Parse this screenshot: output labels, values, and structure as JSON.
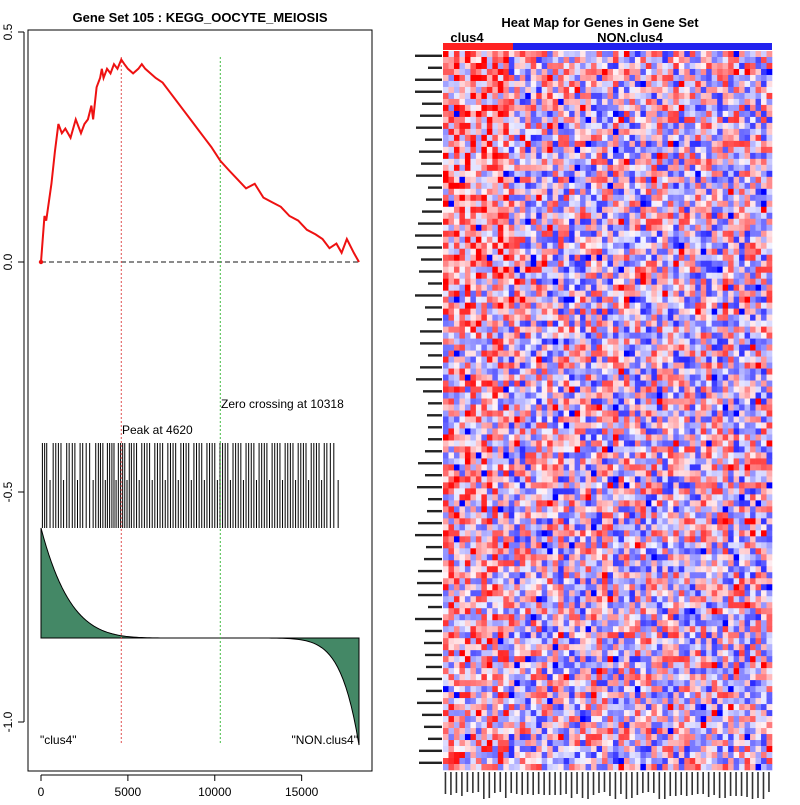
{
  "gsea": {
    "title": "Gene Set  105 : KEGG_OOCYTE_MEIOSIS",
    "peak_label": "Peak at 4620",
    "zero_label": "Zero crossing at 10318",
    "left_group_label": "\"clus4\"",
    "right_group_label": "\"NON.clus4\"",
    "colors": {
      "es_line": "#ee1111",
      "peak_line": "#e05050",
      "zero_line": "#44bb44",
      "ranked_fill": "#448866"
    }
  },
  "heatmap": {
    "title": "Heat Map for Genes in Gene Set",
    "group_left": "clus4",
    "group_right": "NON.clus4",
    "colors": {
      "group_left": "#ff2222",
      "group_right": "#2222ee",
      "high": "#ff0000",
      "low": "#0000ff",
      "mid": "#f4f4f8"
    }
  },
  "chart_data": [
    {
      "type": "line",
      "title": "Gene Set  105 : KEGG_OOCYTE_MEIOSIS",
      "xlim": [
        0,
        18300
      ],
      "ylim": [
        -1.08,
        0.5
      ],
      "x_ticks": [
        0,
        5000,
        10000,
        15000
      ],
      "x_tick_labels": [
        "0",
        "5000",
        "10000",
        "15000"
      ],
      "y_ticks": [
        0.5,
        0.0,
        -0.5,
        -1.0
      ],
      "y_tick_labels": [
        "0.5",
        "0.0",
        "-0.5",
        "-1.0"
      ],
      "series": [
        {
          "x": [
            0,
            200,
            300,
            600,
            800,
            1000,
            1200,
            1400,
            1700,
            2000,
            2300,
            2500,
            2700,
            2900,
            3000,
            3200,
            3400,
            3500,
            3600,
            3800,
            4000,
            4200,
            4400,
            4620,
            4800,
            5000,
            5300,
            5600,
            5800,
            6000,
            6300,
            6600,
            7000,
            7400,
            7800,
            8200,
            8600,
            9000,
            9400,
            9800,
            10318,
            10800,
            11300,
            11800,
            12300,
            12800,
            13300,
            13800,
            14300,
            14800,
            15300,
            15800,
            16200,
            16600,
            17000,
            17300,
            17600,
            18000,
            18300
          ],
          "y": [
            0.0,
            0.1,
            0.09,
            0.17,
            0.24,
            0.3,
            0.28,
            0.29,
            0.27,
            0.31,
            0.28,
            0.3,
            0.31,
            0.34,
            0.31,
            0.38,
            0.4,
            0.42,
            0.4,
            0.42,
            0.41,
            0.43,
            0.42,
            0.44,
            0.43,
            0.42,
            0.41,
            0.42,
            0.43,
            0.42,
            0.41,
            0.4,
            0.39,
            0.37,
            0.35,
            0.33,
            0.31,
            0.29,
            0.27,
            0.25,
            0.22,
            0.2,
            0.18,
            0.16,
            0.17,
            0.14,
            0.13,
            0.12,
            0.1,
            0.09,
            0.07,
            0.06,
            0.05,
            0.03,
            0.04,
            0.02,
            0.05,
            0.02,
            0.0
          ]
        }
      ],
      "peak_x": 4620,
      "zero_crossing_x": 10318,
      "gene_hits": [
        80,
        210,
        330,
        520,
        700,
        850,
        1000,
        1150,
        1300,
        1480,
        1620,
        1800,
        1950,
        2100,
        2250,
        2400,
        2600,
        2800,
        3000,
        3150,
        3300,
        3420,
        3560,
        3700,
        3820,
        3950,
        4080,
        4200,
        4320,
        4450,
        4580,
        4700,
        4820,
        4950,
        5080,
        5200,
        5350,
        5500,
        5650,
        5800,
        5950,
        6100,
        6250,
        6400,
        6550,
        6700,
        6850,
        7000,
        7150,
        7300,
        7450,
        7600,
        7750,
        7900,
        8050,
        8200,
        8350,
        8500,
        8650,
        8800,
        8950,
        9100,
        9250,
        9400,
        9550,
        9700,
        9850,
        10000,
        10150,
        10300,
        10450,
        10600,
        10750,
        10900,
        11050,
        11200,
        11350,
        11500,
        11650,
        11800,
        11950,
        12100,
        12250,
        12400,
        12550,
        12700,
        12850,
        13000,
        13150,
        13300,
        13450,
        13600,
        13750,
        13900,
        14050,
        14200,
        14350,
        14500,
        14650,
        14800,
        14950,
        15100,
        15250,
        15400,
        15550,
        15700,
        15850,
        16000,
        16150,
        16300,
        16450,
        16650,
        16850,
        17100
      ],
      "ranked_metric_shape": "decreasing-sigmoid"
    },
    {
      "type": "heatmap",
      "title": "Heat Map for Genes in Gene Set",
      "groups": [
        {
          "name": "clus4",
          "n_samples": 12
        },
        {
          "name": "NON.clus4",
          "n_samples": 48
        }
      ],
      "n_genes": 120
    }
  ]
}
